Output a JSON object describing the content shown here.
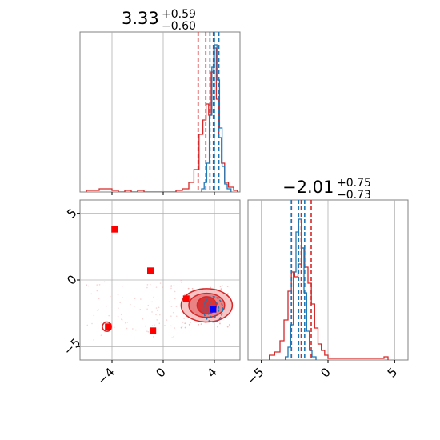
{
  "chart_data": [
    {
      "type": "histogram",
      "panel": "parameter-1-marginal",
      "title": {
        "value": "3.33",
        "plus": "+0.59",
        "minus": "−0.60"
      },
      "xlim": [
        -6.5,
        6.0
      ],
      "grid": true,
      "series": [
        {
          "color": "#d62728",
          "bins": [
            [
              -6.0,
              0.01
            ],
            [
              -5.5,
              0.01
            ],
            [
              -5.0,
              0.02
            ],
            [
              -4.5,
              0.02
            ],
            [
              -4.0,
              0.01
            ],
            [
              -3.5,
              0.0
            ],
            [
              -3.0,
              0.01
            ],
            [
              -2.5,
              0.0
            ],
            [
              -2.0,
              0.01
            ],
            [
              -1.5,
              0.0
            ],
            [
              -1.0,
              0.0
            ],
            [
              -0.5,
              0.0
            ],
            [
              0.0,
              0.0
            ],
            [
              0.5,
              0.0
            ],
            [
              1.0,
              0.01
            ],
            [
              1.5,
              0.02
            ],
            [
              2.0,
              0.06
            ],
            [
              2.4,
              0.14
            ],
            [
              2.8,
              0.36
            ],
            [
              3.1,
              0.45
            ],
            [
              3.35,
              0.55
            ],
            [
              3.55,
              0.48
            ],
            [
              3.75,
              0.75
            ],
            [
              3.95,
              0.9
            ],
            [
              4.15,
              0.58
            ],
            [
              4.35,
              0.34
            ],
            [
              4.55,
              0.18
            ],
            [
              4.8,
              0.06
            ],
            [
              5.1,
              0.03
            ],
            [
              5.5,
              0.01
            ]
          ],
          "quantile_lines": [
            2.73,
            3.33,
            3.92
          ]
        },
        {
          "color": "#1f77b4",
          "bins": [
            [
              3.0,
              0.02
            ],
            [
              3.2,
              0.06
            ],
            [
              3.4,
              0.18
            ],
            [
              3.6,
              0.48
            ],
            [
              3.8,
              0.78
            ],
            [
              4.0,
              0.92
            ],
            [
              4.2,
              0.7
            ],
            [
              4.4,
              0.4
            ],
            [
              4.6,
              0.16
            ],
            [
              4.8,
              0.05
            ],
            [
              5.0,
              0.02
            ]
          ],
          "quantile_lines": [
            3.65,
            4.0,
            4.35
          ]
        }
      ]
    },
    {
      "type": "histogram",
      "panel": "parameter-2-marginal",
      "title": {
        "value": "−2.01",
        "plus": "+0.75",
        "minus": "−0.73"
      },
      "xlim": [
        -6.0,
        6.0
      ],
      "xticks": [
        "−5",
        "0",
        "5"
      ],
      "grid": true,
      "series": [
        {
          "color": "#d62728",
          "bins": [
            [
              -4.4,
              0.03
            ],
            [
              -4.0,
              0.05
            ],
            [
              -3.6,
              0.12
            ],
            [
              -3.3,
              0.25
            ],
            [
              -3.0,
              0.43
            ],
            [
              -2.75,
              0.55
            ],
            [
              -2.5,
              0.52
            ],
            [
              -2.25,
              0.6
            ],
            [
              -2.0,
              0.7
            ],
            [
              -1.75,
              0.58
            ],
            [
              -1.5,
              0.48
            ],
            [
              -1.25,
              0.35
            ],
            [
              -1.0,
              0.2
            ],
            [
              -0.75,
              0.1
            ],
            [
              -0.5,
              0.06
            ],
            [
              -0.25,
              0.03
            ],
            [
              0.0,
              0.01
            ],
            [
              4.2,
              0.02
            ]
          ],
          "quantile_lines": [
            -2.74,
            -2.01,
            -1.26
          ]
        },
        {
          "color": "#1f77b4",
          "bins": [
            [
              -3.2,
              0.02
            ],
            [
              -3.0,
              0.08
            ],
            [
              -2.8,
              0.22
            ],
            [
              -2.6,
              0.55
            ],
            [
              -2.4,
              0.8
            ],
            [
              -2.2,
              0.88
            ],
            [
              -2.0,
              0.7
            ],
            [
              -1.8,
              0.42
            ],
            [
              -1.6,
              0.18
            ],
            [
              -1.4,
              0.06
            ],
            [
              -1.2,
              0.02
            ]
          ],
          "quantile_lines": [
            -2.75,
            -2.2,
            -1.75
          ]
        }
      ]
    },
    {
      "type": "scatter",
      "panel": "joint-parameter-1-vs-parameter-2",
      "xlim": [
        -6.5,
        6.0
      ],
      "ylim": [
        -6.0,
        6.0
      ],
      "xticks": [
        "−4",
        "0",
        "4"
      ],
      "yticks": [
        "−5",
        "0",
        "5"
      ],
      "grid": true,
      "truth_markers": {
        "color": "#ff0000",
        "points": [
          [
            -3.8,
            3.8
          ],
          [
            -1.0,
            0.7
          ],
          [
            1.8,
            -1.4
          ],
          [
            -4.3,
            -3.5
          ],
          [
            -0.8,
            -3.8
          ]
        ]
      },
      "highlight_marker": {
        "color": "#0000ff",
        "point": [
          3.9,
          -2.2
        ]
      },
      "contours": [
        {
          "color": "#d62728",
          "center": [
            3.4,
            -1.9
          ],
          "levels_radii": [
            [
              2.0,
              1.25
            ],
            [
              1.4,
              0.9
            ],
            [
              0.75,
              0.65
            ]
          ]
        },
        {
          "color": "#1f77b4",
          "center": [
            3.9,
            -2.2
          ],
          "levels_radii": [
            [
              0.75,
              0.95
            ],
            [
              0.45,
              0.6
            ]
          ]
        },
        {
          "color": "#d62728",
          "center": [
            -4.4,
            -3.5
          ],
          "levels_radii": [
            [
              0.35,
              0.35
            ]
          ]
        }
      ]
    }
  ]
}
